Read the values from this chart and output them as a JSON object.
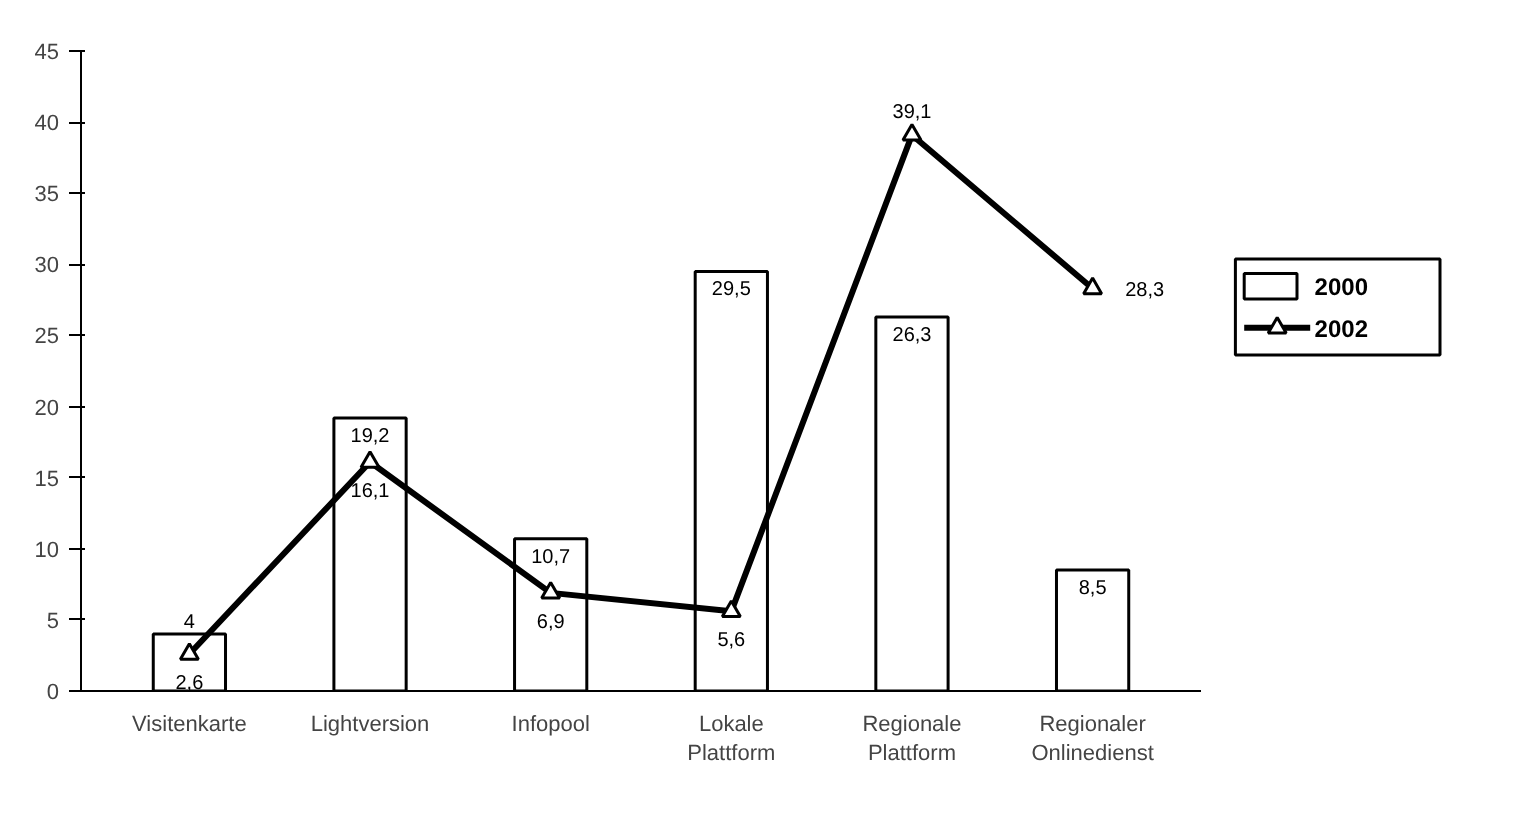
{
  "chart_data": {
    "type": "bar",
    "categories": [
      "Visitenkarte",
      "Lightversion",
      "Infopool",
      "Lokale\nPlattform",
      "Regionale\nPlattform",
      "Regionaler\nOnlinedienst"
    ],
    "series": [
      {
        "name": "2000",
        "type": "bar",
        "color": "#ffffff",
        "values": [
          4,
          19.2,
          10.7,
          29.5,
          26.3,
          8.5
        ],
        "value_labels": [
          "4",
          "19,2",
          "10,7",
          "29,5",
          "26,3",
          "8,5"
        ]
      },
      {
        "name": "2002",
        "type": "line",
        "color": "#000000",
        "marker": "triangle",
        "values": [
          2.6,
          16.1,
          6.9,
          5.6,
          39.1,
          28.3
        ],
        "value_labels": [
          "2,6",
          "16,1",
          "6,9",
          "5,6",
          "39,1",
          "28,3"
        ]
      }
    ],
    "ylim": [
      0,
      45
    ],
    "yticks": [
      0,
      5,
      10,
      15,
      20,
      25,
      30,
      35,
      40,
      45
    ],
    "grid": false,
    "legend": "right"
  }
}
